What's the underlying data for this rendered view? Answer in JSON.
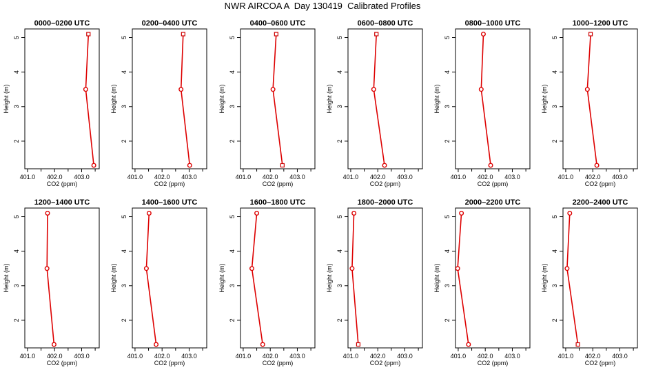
{
  "figure": {
    "title": "NWR AIRCOA A  Day 130419  Calibrated Profiles"
  },
  "colors": {
    "series": "#dd0000",
    "marker_square": "#cc0000",
    "axes": "#000000"
  },
  "chart_data": [
    {
      "type": "line",
      "title": "0000–0200 UTC",
      "xlabel": "CO2 (ppm)",
      "ylabel": "Height (m)",
      "xlim": [
        400.9,
        403.65
      ],
      "ylim": [
        1.2,
        5.25
      ],
      "xticks": [
        "401.0",
        "402.0",
        "403.0"
      ],
      "yticks": [
        "2",
        "3",
        "4",
        "5"
      ],
      "grid": false,
      "x": [
        403.45,
        403.15,
        403.25
      ],
      "y": [
        1.3,
        3.5,
        5.1
      ],
      "markers": [
        "circle",
        "circle",
        "square"
      ]
    },
    {
      "type": "line",
      "title": "0200–0400 UTC",
      "xlabel": "CO2 (ppm)",
      "ylabel": "Height (m)",
      "xlim": [
        400.9,
        403.65
      ],
      "ylim": [
        1.2,
        5.25
      ],
      "xticks": [
        "401.0",
        "402.0",
        "403.0"
      ],
      "yticks": [
        "2",
        "3",
        "4",
        "5"
      ],
      "grid": false,
      "x": [
        403.02,
        402.7,
        402.78
      ],
      "y": [
        1.3,
        3.5,
        5.1
      ],
      "markers": [
        "circle",
        "circle",
        "square"
      ]
    },
    {
      "type": "line",
      "title": "0400–0600 UTC",
      "xlabel": "CO2 (ppm)",
      "ylabel": "Height (m)",
      "xlim": [
        400.9,
        403.65
      ],
      "ylim": [
        1.2,
        5.25
      ],
      "xticks": [
        "401.0",
        "402.0",
        "403.0"
      ],
      "yticks": [
        "2",
        "3",
        "4",
        "5"
      ],
      "grid": false,
      "x": [
        402.45,
        402.1,
        402.22
      ],
      "y": [
        1.3,
        3.5,
        5.1
      ],
      "markers": [
        "square",
        "circle",
        "square"
      ]
    },
    {
      "type": "line",
      "title": "0600–0800 UTC",
      "xlabel": "CO2 (ppm)",
      "ylabel": "Height (m)",
      "xlim": [
        400.9,
        403.65
      ],
      "ylim": [
        1.2,
        5.25
      ],
      "xticks": [
        "401.0",
        "402.0",
        "403.0"
      ],
      "yticks": [
        "2",
        "3",
        "4",
        "5"
      ],
      "grid": false,
      "x": [
        402.25,
        401.85,
        401.95
      ],
      "y": [
        1.3,
        3.5,
        5.1
      ],
      "markers": [
        "circle",
        "circle",
        "square"
      ]
    },
    {
      "type": "line",
      "title": "0800–1000 UTC",
      "xlabel": "CO2 (ppm)",
      "ylabel": "Height (m)",
      "xlim": [
        400.9,
        403.65
      ],
      "ylim": [
        1.2,
        5.25
      ],
      "xticks": [
        "401.0",
        "402.0",
        "403.0"
      ],
      "yticks": [
        "2",
        "3",
        "4",
        "5"
      ],
      "grid": false,
      "x": [
        402.2,
        401.85,
        401.93
      ],
      "y": [
        1.3,
        3.5,
        5.1
      ],
      "markers": [
        "circle",
        "circle",
        "circle"
      ]
    },
    {
      "type": "line",
      "title": "1000–1200 UTC",
      "xlabel": "CO2 (ppm)",
      "ylabel": "Height (m)",
      "xlim": [
        400.9,
        403.65
      ],
      "ylim": [
        1.2,
        5.25
      ],
      "xticks": [
        "401.0",
        "402.0",
        "403.0"
      ],
      "yticks": [
        "2",
        "3",
        "4",
        "5"
      ],
      "grid": false,
      "x": [
        402.15,
        401.8,
        401.92
      ],
      "y": [
        1.3,
        3.5,
        5.1
      ],
      "markers": [
        "circle",
        "circle",
        "square"
      ]
    },
    {
      "type": "line",
      "title": "1200–1400 UTC",
      "xlabel": "CO2 (ppm)",
      "ylabel": "Height (m)",
      "xlim": [
        400.9,
        403.65
      ],
      "ylim": [
        1.2,
        5.25
      ],
      "xticks": [
        "401.0",
        "402.0",
        "403.0"
      ],
      "yticks": [
        "2",
        "3",
        "4",
        "5"
      ],
      "grid": false,
      "x": [
        401.98,
        401.72,
        401.74
      ],
      "y": [
        1.3,
        3.5,
        5.1
      ],
      "markers": [
        "circle",
        "circle",
        "circle"
      ]
    },
    {
      "type": "line",
      "title": "1400–1600 UTC",
      "xlabel": "CO2 (ppm)",
      "ylabel": "Height (m)",
      "xlim": [
        400.9,
        403.65
      ],
      "ylim": [
        1.2,
        5.25
      ],
      "xticks": [
        "401.0",
        "402.0",
        "403.0"
      ],
      "yticks": [
        "2",
        "3",
        "4",
        "5"
      ],
      "grid": false,
      "x": [
        401.78,
        401.42,
        401.52
      ],
      "y": [
        1.3,
        3.5,
        5.1
      ],
      "markers": [
        "circle",
        "circle",
        "circle"
      ]
    },
    {
      "type": "line",
      "title": "1600–1800 UTC",
      "xlabel": "CO2 (ppm)",
      "ylabel": "Height (m)",
      "xlim": [
        400.9,
        403.65
      ],
      "ylim": [
        1.2,
        5.25
      ],
      "xticks": [
        "401.0",
        "402.0",
        "403.0"
      ],
      "yticks": [
        "2",
        "3",
        "4",
        "5"
      ],
      "grid": false,
      "x": [
        401.72,
        401.32,
        401.5
      ],
      "y": [
        1.3,
        3.5,
        5.1
      ],
      "markers": [
        "circle",
        "circle",
        "circle"
      ]
    },
    {
      "type": "line",
      "title": "1800–2000 UTC",
      "xlabel": "CO2 (ppm)",
      "ylabel": "Height (m)",
      "xlim": [
        400.9,
        403.65
      ],
      "ylim": [
        1.2,
        5.25
      ],
      "xticks": [
        "401.0",
        "402.0",
        "403.0"
      ],
      "yticks": [
        "2",
        "3",
        "4",
        "5"
      ],
      "grid": false,
      "x": [
        401.28,
        401.05,
        401.12
      ],
      "y": [
        1.3,
        3.5,
        5.1
      ],
      "markers": [
        "square",
        "circle",
        "circle"
      ]
    },
    {
      "type": "line",
      "title": "2000–2200 UTC",
      "xlabel": "CO2 (ppm)",
      "ylabel": "Height (m)",
      "xlim": [
        400.9,
        403.65
      ],
      "ylim": [
        1.2,
        5.25
      ],
      "xticks": [
        "401.0",
        "402.0",
        "403.0"
      ],
      "yticks": [
        "2",
        "3",
        "4",
        "5"
      ],
      "grid": false,
      "x": [
        401.38,
        400.98,
        401.12
      ],
      "y": [
        1.3,
        3.5,
        5.1
      ],
      "markers": [
        "circle",
        "circle",
        "circle"
      ]
    },
    {
      "type": "line",
      "title": "2200–2400 UTC",
      "xlabel": "CO2 (ppm)",
      "ylabel": "Height (m)",
      "xlim": [
        400.9,
        403.65
      ],
      "ylim": [
        1.2,
        5.25
      ],
      "xticks": [
        "401.0",
        "402.0",
        "403.0"
      ],
      "yticks": [
        "2",
        "3",
        "4",
        "5"
      ],
      "grid": false,
      "x": [
        401.45,
        401.05,
        401.15
      ],
      "y": [
        1.3,
        3.5,
        5.1
      ],
      "markers": [
        "square",
        "circle",
        "circle"
      ]
    }
  ]
}
